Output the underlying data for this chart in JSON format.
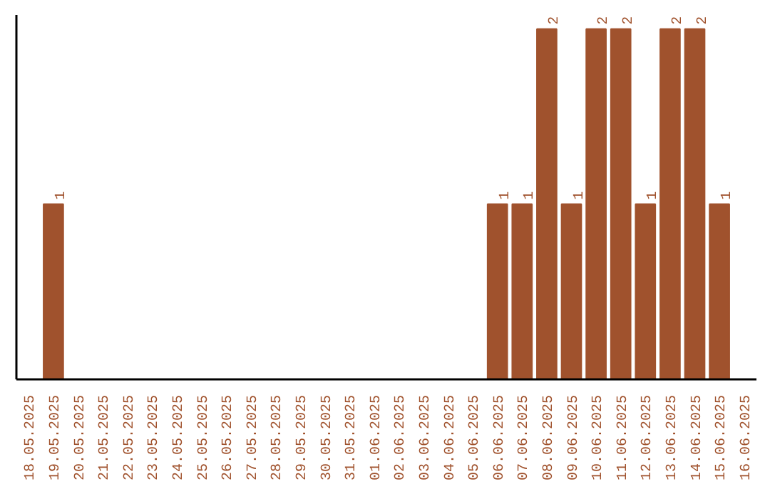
{
  "chart_data": {
    "type": "bar",
    "categories": [
      "18.05.2025",
      "19.05.2025",
      "20.05.2025",
      "21.05.2025",
      "22.05.2025",
      "23.05.2025",
      "24.05.2025",
      "25.05.2025",
      "26.05.2025",
      "27.05.2025",
      "28.05.2025",
      "29.05.2025",
      "30.05.2025",
      "31.05.2025",
      "01.06.2025",
      "02.06.2025",
      "03.06.2025",
      "04.06.2025",
      "05.06.2025",
      "06.06.2025",
      "07.06.2025",
      "08.06.2025",
      "09.06.2025",
      "10.06.2025",
      "11.06.2025",
      "12.06.2025",
      "13.06.2025",
      "14.06.2025",
      "15.06.2025",
      "16.06.2025"
    ],
    "values": [
      0,
      1,
      0,
      0,
      0,
      0,
      0,
      0,
      0,
      0,
      0,
      0,
      0,
      0,
      0,
      0,
      0,
      0,
      0,
      1,
      1,
      2,
      1,
      2,
      2,
      1,
      2,
      2,
      1,
      0
    ],
    "value_labels": [
      null,
      "1",
      null,
      null,
      null,
      null,
      null,
      null,
      null,
      null,
      null,
      null,
      null,
      null,
      null,
      null,
      null,
      null,
      null,
      "1",
      "1",
      "2",
      "1",
      "2",
      "2",
      "1",
      "2",
      "2",
      "1",
      null
    ],
    "color": "#a0522d",
    "grid": false,
    "tick_labels": "x"
  }
}
